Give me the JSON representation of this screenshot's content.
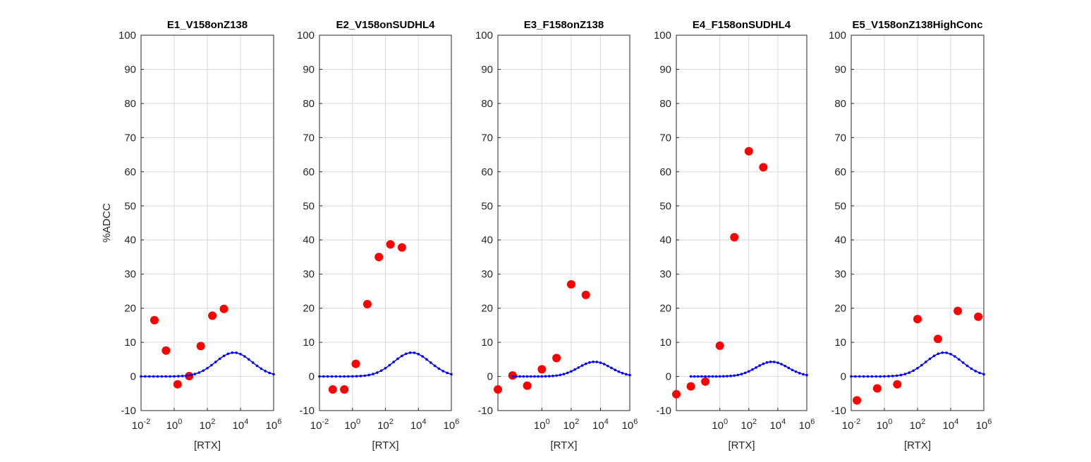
{
  "chart_data": [
    {
      "type": "scatter",
      "title": "E1_V158onZ138",
      "xlabel": "[RTX]",
      "ylabel": "%ADCC",
      "xscale": "log",
      "grid": true,
      "xlim": [
        0.01,
        1000000
      ],
      "ylim": [
        -10,
        100
      ],
      "xticks": [
        {
          "value": 0.01,
          "label": "10^-2"
        },
        {
          "value": 1,
          "label": "10^0"
        },
        {
          "value": 100,
          "label": "10^2"
        },
        {
          "value": 10000,
          "label": "10^4"
        },
        {
          "value": 1000000,
          "label": "10^6"
        }
      ],
      "yticks": [
        -10,
        0,
        10,
        20,
        30,
        40,
        50,
        60,
        70,
        80,
        90,
        100
      ],
      "series": [
        {
          "mode": "markers",
          "color": "#ff0000",
          "x": [
            0.064,
            0.32,
            1.6,
            8,
            40,
            200,
            1000
          ],
          "values": [
            16.5,
            7.6,
            -2.3,
            0.1,
            8.9,
            17.8,
            19.8
          ]
        },
        {
          "mode": "line",
          "color": "#0000ff",
          "x": [
            0.01,
            0.0178,
            0.0316,
            0.0562,
            0.1,
            0.178,
            0.316,
            0.562,
            1,
            1.78,
            3.16,
            5.62,
            10,
            17.8,
            31.6,
            56.2,
            100,
            178,
            316,
            562,
            1000,
            1780,
            3160,
            5620,
            10000,
            17800,
            31600,
            56200,
            100000,
            178000,
            316000,
            562000,
            1000000
          ],
          "values": [
            0,
            0,
            0,
            0,
            0,
            0,
            0,
            0,
            0.03,
            0.07,
            0.13,
            0.24,
            0.43,
            0.71,
            1.13,
            1.71,
            2.43,
            3.3,
            4.25,
            5.19,
            6.03,
            6.66,
            6.97,
            6.94,
            6.55,
            5.88,
            5.0,
            4.05,
            3.12,
            2.28,
            1.58,
            1.04,
            0.65
          ]
        }
      ]
    },
    {
      "type": "scatter",
      "title": "E2_V158onSUDHL4",
      "xlabel": "[RTX]",
      "xscale": "log",
      "grid": true,
      "xlim": [
        0.01,
        1000000
      ],
      "ylim": [
        -10,
        100
      ],
      "xticks": [
        {
          "value": 0.01,
          "label": "10^-2"
        },
        {
          "value": 1,
          "label": "10^0"
        },
        {
          "value": 100,
          "label": "10^2"
        },
        {
          "value": 10000,
          "label": "10^4"
        },
        {
          "value": 1000000,
          "label": "10^6"
        }
      ],
      "yticks": [
        -10,
        0,
        10,
        20,
        30,
        40,
        50,
        60,
        70,
        80,
        90,
        100
      ],
      "series": [
        {
          "mode": "markers",
          "color": "#ff0000",
          "x": [
            0.064,
            0.32,
            1.6,
            8,
            40,
            200,
            1000
          ],
          "values": [
            -3.8,
            -3.8,
            3.7,
            21.2,
            35,
            38.7,
            37.8
          ]
        },
        {
          "mode": "line",
          "color": "#0000ff",
          "x": [
            0.01,
            0.0178,
            0.0316,
            0.0562,
            0.1,
            0.178,
            0.316,
            0.562,
            1,
            1.78,
            3.16,
            5.62,
            10,
            17.8,
            31.6,
            56.2,
            100,
            178,
            316,
            562,
            1000,
            1780,
            3160,
            5620,
            10000,
            17800,
            31600,
            56200,
            100000,
            178000,
            316000,
            562000,
            1000000
          ],
          "values": [
            0,
            0,
            0,
            0,
            0,
            0,
            0,
            0,
            0.03,
            0.07,
            0.13,
            0.24,
            0.43,
            0.71,
            1.13,
            1.71,
            2.43,
            3.3,
            4.25,
            5.19,
            6.03,
            6.66,
            6.97,
            6.94,
            6.55,
            5.88,
            5.0,
            4.05,
            3.12,
            2.28,
            1.58,
            1.04,
            0.65
          ]
        }
      ]
    },
    {
      "type": "scatter",
      "title": "E3_F158onZ138",
      "xlabel": "[RTX]",
      "xscale": "log",
      "grid": true,
      "xlim": [
        0.001,
        1000000
      ],
      "ylim": [
        -10,
        100
      ],
      "xticks": [
        {
          "value": 1,
          "label": "10^0"
        },
        {
          "value": 100,
          "label": "10^2"
        },
        {
          "value": 10000,
          "label": "10^4"
        },
        {
          "value": 1000000,
          "label": "10^6"
        }
      ],
      "yticks": [
        -10,
        0,
        10,
        20,
        30,
        40,
        50,
        60,
        70,
        80,
        90,
        100
      ],
      "series": [
        {
          "mode": "markers",
          "color": "#ff0000",
          "x": [
            0.001,
            0.01,
            0.1,
            1,
            10,
            100,
            1000
          ],
          "values": [
            -3.8,
            0.3,
            -2.7,
            2.1,
            5.4,
            27,
            23.9
          ]
        },
        {
          "mode": "line",
          "color": "#0000ff",
          "x": [
            0.01,
            0.0178,
            0.0316,
            0.0562,
            0.1,
            0.178,
            0.316,
            0.562,
            1,
            1.78,
            3.16,
            5.62,
            10,
            17.8,
            31.6,
            56.2,
            100,
            178,
            316,
            562,
            1000,
            1780,
            3160,
            5620,
            10000,
            17800,
            31600,
            56200,
            100000,
            178000,
            316000,
            562000,
            1000000
          ],
          "values": [
            0,
            0,
            0,
            0,
            0,
            0,
            0,
            0,
            0.02,
            0.04,
            0.08,
            0.15,
            0.26,
            0.44,
            0.7,
            1.05,
            1.49,
            2.03,
            2.61,
            3.19,
            3.71,
            4.09,
            4.28,
            4.26,
            4.02,
            3.61,
            3.07,
            2.49,
            1.91,
            1.4,
            0.97,
            0.64,
            0.4
          ]
        }
      ]
    },
    {
      "type": "scatter",
      "title": "E4_F158onSUDHL4",
      "xlabel": "[RTX]",
      "xscale": "log",
      "grid": true,
      "xlim": [
        0.001,
        1000000
      ],
      "ylim": [
        -10,
        100
      ],
      "xticks": [
        {
          "value": 1,
          "label": "10^0"
        },
        {
          "value": 100,
          "label": "10^2"
        },
        {
          "value": 10000,
          "label": "10^4"
        },
        {
          "value": 1000000,
          "label": "10^6"
        }
      ],
      "yticks": [
        -10,
        0,
        10,
        20,
        30,
        40,
        50,
        60,
        70,
        80,
        90,
        100
      ],
      "series": [
        {
          "mode": "markers",
          "color": "#ff0000",
          "x": [
            0.001,
            0.01,
            0.1,
            1,
            10,
            100,
            1000
          ],
          "values": [
            -5.2,
            -2.9,
            -1.5,
            9,
            40.8,
            66,
            61.3
          ]
        },
        {
          "mode": "line",
          "color": "#0000ff",
          "x": [
            0.01,
            0.0178,
            0.0316,
            0.0562,
            0.1,
            0.178,
            0.316,
            0.562,
            1,
            1.78,
            3.16,
            5.62,
            10,
            17.8,
            31.6,
            56.2,
            100,
            178,
            316,
            562,
            1000,
            1780,
            3160,
            5620,
            10000,
            17800,
            31600,
            56200,
            100000,
            178000,
            316000,
            562000,
            1000000
          ],
          "values": [
            0,
            0,
            0,
            0,
            0,
            0,
            0,
            0,
            0.02,
            0.04,
            0.08,
            0.15,
            0.26,
            0.44,
            0.7,
            1.05,
            1.49,
            2.03,
            2.61,
            3.19,
            3.71,
            4.09,
            4.28,
            4.26,
            4.02,
            3.61,
            3.07,
            2.49,
            1.91,
            1.4,
            0.97,
            0.64,
            0.4
          ]
        }
      ]
    },
    {
      "type": "scatter",
      "title": "E5_V158onZ138HighConc",
      "xlabel": "[RTX]",
      "xscale": "log",
      "grid": true,
      "xlim": [
        0.01,
        1000000
      ],
      "ylim": [
        -10,
        100
      ],
      "xticks": [
        {
          "value": 0.01,
          "label": "10^-2"
        },
        {
          "value": 1,
          "label": "10^0"
        },
        {
          "value": 100,
          "label": "10^2"
        },
        {
          "value": 10000,
          "label": "10^4"
        },
        {
          "value": 1000000,
          "label": "10^6"
        }
      ],
      "yticks": [
        -10,
        0,
        10,
        20,
        30,
        40,
        50,
        60,
        70,
        80,
        90,
        100
      ],
      "series": [
        {
          "mode": "markers",
          "color": "#ff0000",
          "x": [
            0.022,
            0.37,
            6,
            100,
            1700,
            27000,
            460000
          ],
          "values": [
            -7,
            -3.5,
            -2.3,
            16.8,
            11,
            19.2,
            17.5
          ]
        },
        {
          "mode": "line",
          "color": "#0000ff",
          "x": [
            0.01,
            0.0178,
            0.0316,
            0.0562,
            0.1,
            0.178,
            0.316,
            0.562,
            1,
            1.78,
            3.16,
            5.62,
            10,
            17.8,
            31.6,
            56.2,
            100,
            178,
            316,
            562,
            1000,
            1780,
            3160,
            5620,
            10000,
            17800,
            31600,
            56200,
            100000,
            178000,
            316000,
            562000,
            1000000
          ],
          "values": [
            0,
            0,
            0,
            0,
            0,
            0,
            0,
            0,
            0.03,
            0.07,
            0.13,
            0.24,
            0.43,
            0.71,
            1.13,
            1.71,
            2.43,
            3.3,
            4.25,
            5.19,
            6.03,
            6.66,
            6.97,
            6.94,
            6.55,
            5.88,
            5.0,
            4.05,
            3.12,
            2.28,
            1.58,
            1.04,
            0.65
          ]
        }
      ]
    }
  ]
}
